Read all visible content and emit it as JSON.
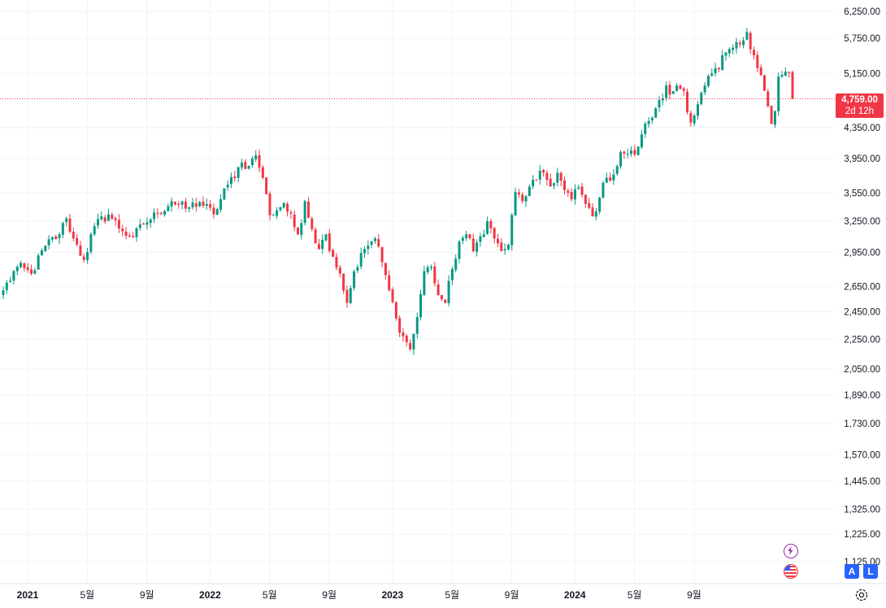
{
  "chart_data": {
    "type": "candlestick",
    "interval": "1W",
    "y_axis": {
      "tick_labels": [
        "6,250.00",
        "5,750.00",
        "5,150.00",
        "4,350.00",
        "3,950.00",
        "3,550.00",
        "3,250.00",
        "2,950.00",
        "2,650.00",
        "2,450.00",
        "2,250.00",
        "2,050.00",
        "1,890.00",
        "1,730.00",
        "1,570.00",
        "1,445.00",
        "1,325.00",
        "1,225.00",
        "1,125.00"
      ],
      "ylim": [
        1110,
        6330
      ],
      "scale": "log"
    },
    "x_axis": {
      "tick_labels": [
        {
          "label": "2021",
          "year": true
        },
        {
          "label": "5월",
          "year": false
        },
        {
          "label": "9월",
          "year": false
        },
        {
          "label": "2022",
          "year": true
        },
        {
          "label": "5월",
          "year": false
        },
        {
          "label": "9월",
          "year": false
        },
        {
          "label": "2023",
          "year": true
        },
        {
          "label": "5월",
          "year": false
        },
        {
          "label": "9월",
          "year": false
        },
        {
          "label": "2024",
          "year": true
        },
        {
          "label": "5월",
          "year": false
        },
        {
          "label": "9월",
          "year": false
        }
      ]
    },
    "last_price": {
      "value": 4759.0,
      "label": "4,759.00",
      "countdown": "2d 12h",
      "color": "#f23645"
    },
    "up_color": "#089981",
    "down_color": "#f23645",
    "anchor_closes": [
      [
        0,
        2620
      ],
      [
        4,
        2820
      ],
      [
        8,
        2760
      ],
      [
        12,
        3010
      ],
      [
        16,
        3120
      ],
      [
        18,
        3280
      ],
      [
        20,
        3080
      ],
      [
        23,
        2880
      ],
      [
        26,
        3200
      ],
      [
        30,
        3320
      ],
      [
        34,
        3150
      ],
      [
        37,
        3090
      ],
      [
        40,
        3220
      ],
      [
        44,
        3330
      ],
      [
        48,
        3460
      ],
      [
        52,
        3380
      ],
      [
        56,
        3450
      ],
      [
        60,
        3320
      ],
      [
        64,
        3640
      ],
      [
        68,
        3900
      ],
      [
        70,
        3860
      ],
      [
        72,
        3990
      ],
      [
        74,
        3720
      ],
      [
        76,
        3310
      ],
      [
        80,
        3440
      ],
      [
        84,
        3120
      ],
      [
        86,
        3460
      ],
      [
        88,
        3170
      ],
      [
        90,
        2980
      ],
      [
        92,
        3120
      ],
      [
        94,
        2910
      ],
      [
        96,
        2760
      ],
      [
        98,
        2520
      ],
      [
        100,
        2780
      ],
      [
        103,
        2980
      ],
      [
        106,
        3080
      ],
      [
        108,
        2860
      ],
      [
        110,
        2620
      ],
      [
        112,
        2400
      ],
      [
        114,
        2270
      ],
      [
        116,
        2180
      ],
      [
        118,
        2410
      ],
      [
        120,
        2780
      ],
      [
        122,
        2820
      ],
      [
        124,
        2580
      ],
      [
        126,
        2520
      ],
      [
        128,
        2800
      ],
      [
        130,
        3050
      ],
      [
        132,
        3120
      ],
      [
        134,
        2960
      ],
      [
        136,
        3100
      ],
      [
        138,
        3250
      ],
      [
        140,
        3080
      ],
      [
        142,
        2960
      ],
      [
        144,
        3020
      ],
      [
        146,
        3560
      ],
      [
        148,
        3460
      ],
      [
        150,
        3620
      ],
      [
        152,
        3700
      ],
      [
        154,
        3780
      ],
      [
        156,
        3620
      ],
      [
        158,
        3780
      ],
      [
        160,
        3580
      ],
      [
        162,
        3480
      ],
      [
        164,
        3610
      ],
      [
        166,
        3430
      ],
      [
        168,
        3300
      ],
      [
        170,
        3500
      ],
      [
        172,
        3720
      ],
      [
        174,
        3760
      ],
      [
        176,
        4030
      ],
      [
        178,
        4010
      ],
      [
        180,
        4000
      ],
      [
        182,
        4260
      ],
      [
        184,
        4440
      ],
      [
        186,
        4620
      ],
      [
        188,
        4760
      ],
      [
        189,
        4960
      ],
      [
        190,
        4820
      ],
      [
        192,
        4960
      ],
      [
        194,
        4880
      ],
      [
        196,
        4420
      ],
      [
        198,
        4680
      ],
      [
        200,
        4960
      ],
      [
        202,
        5150
      ],
      [
        204,
        5220
      ],
      [
        206,
        5500
      ],
      [
        208,
        5580
      ],
      [
        210,
        5640
      ],
      [
        212,
        5860
      ],
      [
        214,
        5450
      ],
      [
        216,
        5120
      ],
      [
        217,
        4880
      ],
      [
        218,
        4650
      ],
      [
        219,
        4400
      ],
      [
        220,
        4580
      ],
      [
        221,
        5100
      ],
      [
        222,
        5130
      ],
      [
        223,
        5180
      ],
      [
        224,
        5160
      ],
      [
        225,
        4759
      ]
    ]
  },
  "ui": {
    "crypto_icon": "lightning-icon",
    "flag_icon": "us-flag-icon",
    "settings_icon": "gear-icon",
    "auto_scale": "A",
    "log_scale": "L"
  }
}
